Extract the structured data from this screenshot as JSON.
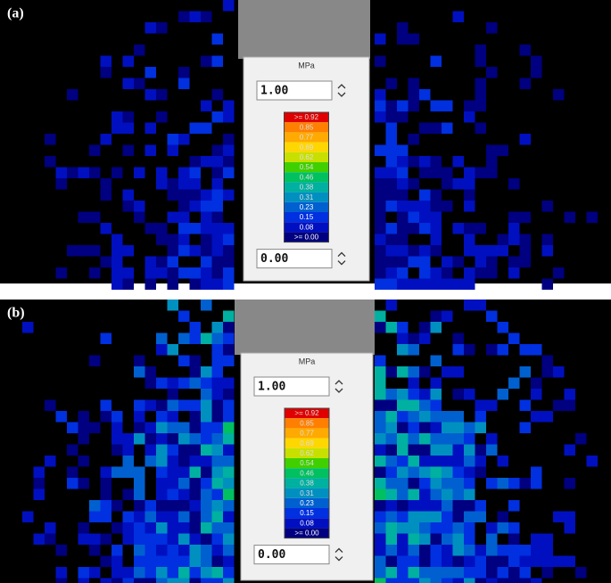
{
  "panels": [
    {
      "label": "(a)",
      "unit": "MPa",
      "max_input": "1.00",
      "min_input": "0.00",
      "legend_labels": [
        ">= 0.92",
        "0.85",
        "0.77",
        "0.69",
        "0.62",
        "0.54",
        "0.46",
        "0.38",
        "0.31",
        "0.23",
        "0.15",
        "0.08",
        ">= 0.00"
      ]
    },
    {
      "label": "(b)",
      "unit": "MPa",
      "max_input": "1.00",
      "min_input": "0.00",
      "legend_labels": [
        ">= 0.92",
        "0.85",
        "0.77",
        "0.69",
        "0.62",
        "0.54",
        "0.46",
        "0.38",
        "0.31",
        "0.23",
        "0.15",
        "0.08",
        ">= 0.00"
      ]
    }
  ]
}
